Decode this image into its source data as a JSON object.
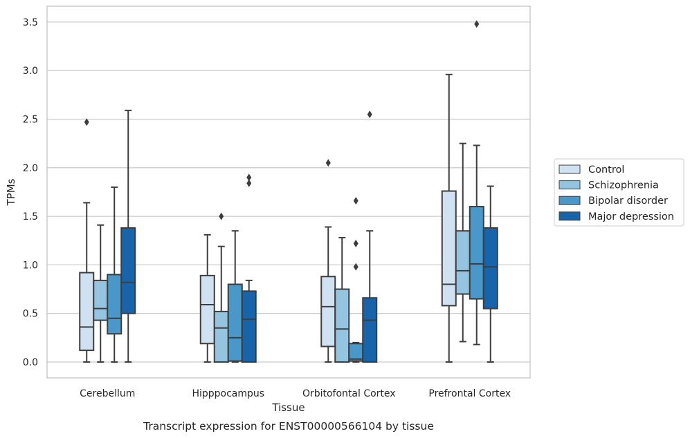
{
  "caption": "Transcript expression for ENST00000566104 by tissue",
  "chart_data": {
    "type": "box",
    "xlabel": "Tissue",
    "ylabel": "TPMs",
    "ylim": [
      -0.17,
      3.65
    ],
    "yticks": [
      "0.0",
      "0.5",
      "1.0",
      "1.5",
      "2.0",
      "2.5",
      "3.0",
      "3.5"
    ],
    "grid": "horizontal",
    "legend_position": "right",
    "categories": [
      "Cerebellum",
      "Hipppocampus",
      "Orbitofontal Cortex",
      "Prefrontal Cortex"
    ],
    "series": [
      {
        "name": "Control",
        "color": "#d0e1f2",
        "boxes": [
          {
            "q1": 0.12,
            "median": 0.36,
            "q3": 0.92,
            "whisker_low": 0.0,
            "whisker_high": 1.64,
            "outliers": [
              2.47
            ]
          },
          {
            "q1": 0.19,
            "median": 0.59,
            "q3": 0.89,
            "whisker_low": 0.0,
            "whisker_high": 1.31,
            "outliers": []
          },
          {
            "q1": 0.16,
            "median": 0.57,
            "q3": 0.88,
            "whisker_low": 0.0,
            "whisker_high": 1.39,
            "outliers": [
              2.05
            ]
          },
          {
            "q1": 0.58,
            "median": 0.8,
            "q3": 1.76,
            "whisker_low": 0.0,
            "whisker_high": 2.96,
            "outliers": []
          }
        ]
      },
      {
        "name": "Schizophrenia",
        "color": "#94c4df",
        "boxes": [
          {
            "q1": 0.43,
            "median": 0.55,
            "q3": 0.84,
            "whisker_low": 0.0,
            "whisker_high": 1.41,
            "outliers": []
          },
          {
            "q1": 0.0,
            "median": 0.35,
            "q3": 0.52,
            "whisker_low": 0.0,
            "whisker_high": 1.19,
            "outliers": [
              1.5
            ]
          },
          {
            "q1": 0.0,
            "median": 0.34,
            "q3": 0.75,
            "whisker_low": 0.0,
            "whisker_high": 1.28,
            "outliers": []
          },
          {
            "q1": 0.7,
            "median": 0.94,
            "q3": 1.35,
            "whisker_low": 0.21,
            "whisker_high": 2.25,
            "outliers": []
          }
        ]
      },
      {
        "name": "Bipolar disorder",
        "color": "#4a98c9",
        "boxes": [
          {
            "q1": 0.29,
            "median": 0.45,
            "q3": 0.9,
            "whisker_low": 0.0,
            "whisker_high": 1.8,
            "outliers": []
          },
          {
            "q1": 0.01,
            "median": 0.25,
            "q3": 0.8,
            "whisker_low": 0.0,
            "whisker_high": 1.35,
            "outliers": []
          },
          {
            "q1": 0.01,
            "median": 0.03,
            "q3": 0.19,
            "whisker_low": 0.0,
            "whisker_high": 0.2,
            "outliers": [
              1.66,
              1.22,
              0.98
            ]
          },
          {
            "q1": 0.65,
            "median": 1.01,
            "q3": 1.6,
            "whisker_low": 0.18,
            "whisker_high": 2.23,
            "outliers": [
              3.48
            ]
          }
        ]
      },
      {
        "name": "Major depression",
        "color": "#1764ab",
        "boxes": [
          {
            "q1": 0.5,
            "median": 0.82,
            "q3": 1.38,
            "whisker_low": 0.0,
            "whisker_high": 2.59,
            "outliers": []
          },
          {
            "q1": 0.0,
            "median": 0.44,
            "q3": 0.73,
            "whisker_low": 0.0,
            "whisker_high": 0.84,
            "outliers": [
              1.9,
              1.84
            ]
          },
          {
            "q1": 0.0,
            "median": 0.43,
            "q3": 0.66,
            "whisker_low": 0.0,
            "whisker_high": 1.35,
            "outliers": [
              2.55
            ]
          },
          {
            "q1": 0.55,
            "median": 0.98,
            "q3": 1.38,
            "whisker_low": 0.0,
            "whisker_high": 1.81,
            "outliers": []
          }
        ]
      }
    ]
  }
}
